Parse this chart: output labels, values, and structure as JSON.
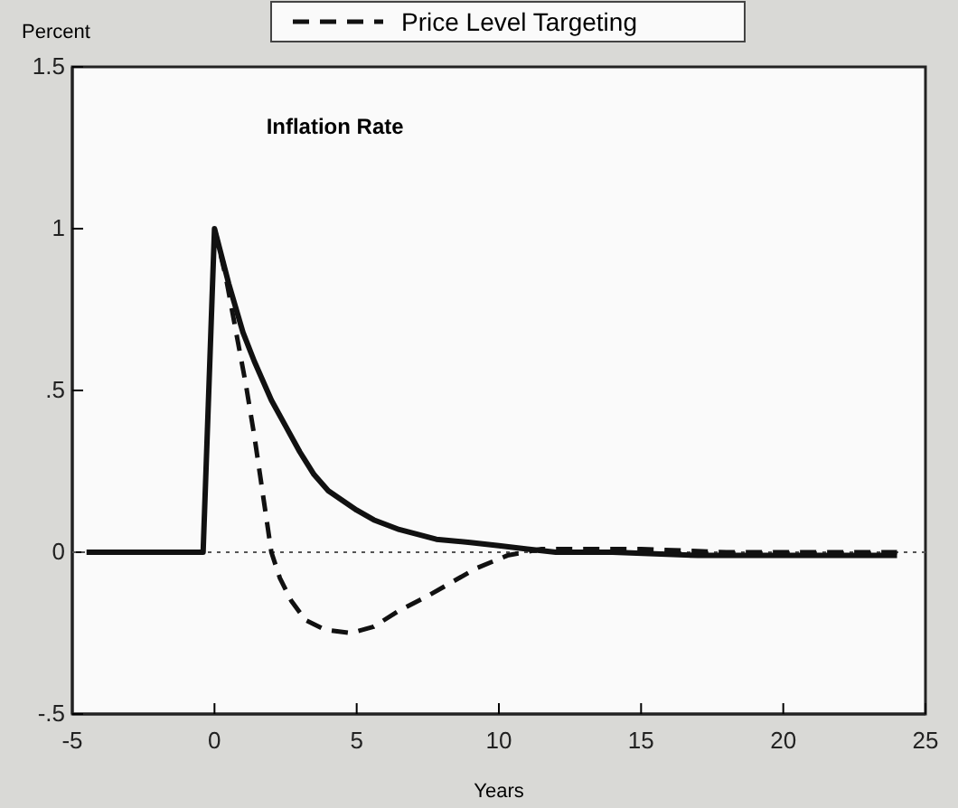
{
  "chart_data": {
    "type": "line",
    "title": "Inflation Rate",
    "xlabel": "Years",
    "ylabel": "Percent",
    "xlim": [
      -5,
      25
    ],
    "xticks": [
      -5,
      0,
      5,
      10,
      15,
      20,
      25
    ],
    "ylim": [
      -0.5,
      1.5
    ],
    "yticks": [
      {
        "value": -0.5,
        "label": "-.5"
      },
      0,
      {
        "value": 0.5,
        "label": ".5"
      },
      1,
      1.5
    ],
    "series": [
      {
        "color": "#111111",
        "line_style": "solid",
        "x": [
          -4.5,
          -0.4,
          0,
          0.5,
          1,
          1.4,
          2,
          2.5,
          3,
          3.5,
          4,
          5,
          5.6,
          6.5,
          7.8,
          9,
          10,
          11,
          12,
          14,
          17,
          20,
          24
        ],
        "values": [
          0,
          0,
          1,
          0.83,
          0.68,
          0.59,
          0.47,
          0.39,
          0.31,
          0.24,
          0.19,
          0.13,
          0.1,
          0.07,
          0.04,
          0.03,
          0.02,
          0.01,
          0,
          0,
          -0.01,
          -0.01,
          -0.01
        ]
      },
      {
        "name": "Price Level Targeting",
        "color": "#111111",
        "line_style": "dashed",
        "x": [
          0,
          0.4,
          0.76,
          1.1,
          1.4,
          1.7,
          2,
          2.3,
          2.7,
          3.2,
          3.9,
          4.8,
          5.6,
          6.5,
          7.4,
          8.2,
          9.2,
          10.3,
          11.5,
          13,
          15,
          18,
          21,
          24
        ],
        "values": [
          1,
          0.85,
          0.68,
          0.52,
          0.36,
          0.18,
          0,
          -0.08,
          -0.15,
          -0.21,
          -0.24,
          -0.25,
          -0.23,
          -0.18,
          -0.14,
          -0.1,
          -0.05,
          -0.01,
          0.01,
          0.01,
          0.01,
          0,
          0,
          0
        ]
      }
    ],
    "ref_lines": [
      {
        "axis": "y",
        "value": 0,
        "line_style": "dotted",
        "color": "#555555"
      }
    ],
    "legend": "top",
    "grid": false
  }
}
